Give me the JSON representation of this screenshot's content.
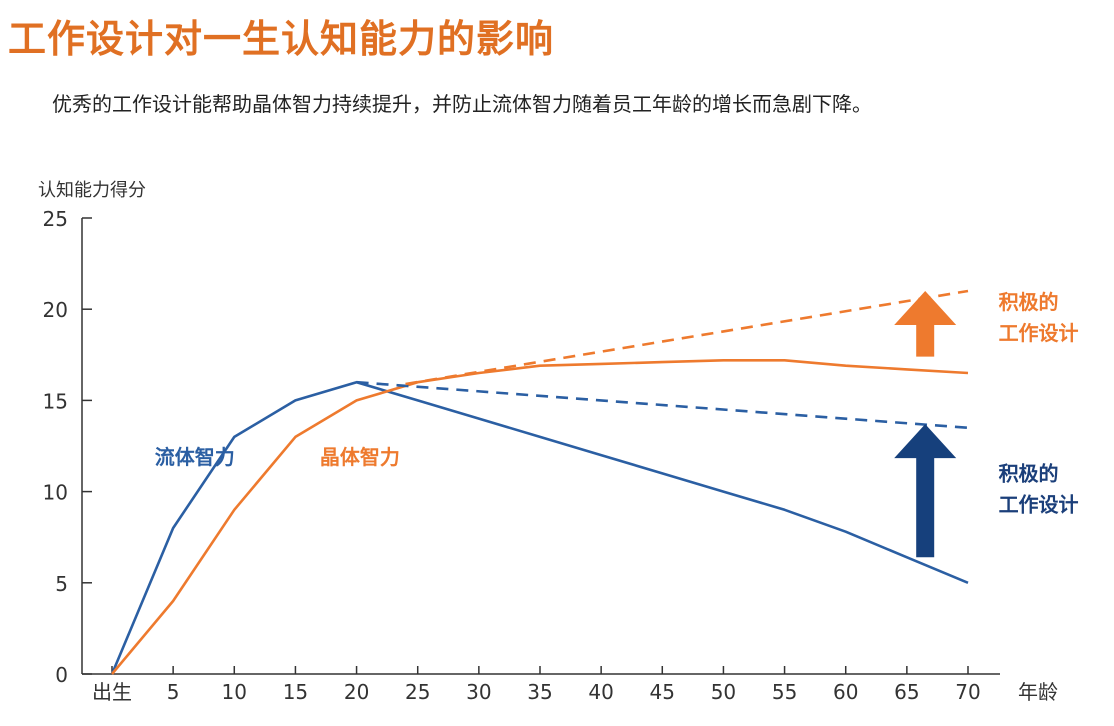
{
  "page": {
    "title": "工作设计对一生认知能力的影响",
    "subtitle": "优秀的工作设计能帮助晶体智力持续提升，并防止流体智力随着员工年龄的增长而急剧下降。"
  },
  "chart_data": {
    "type": "line",
    "ylabel": "认知能力得分",
    "xlabel": "年龄",
    "x_ticks": [
      "出生",
      "5",
      "10",
      "15",
      "20",
      "25",
      "30",
      "35",
      "40",
      "45",
      "50",
      "55",
      "60",
      "65",
      "70"
    ],
    "x_values": [
      0,
      5,
      10,
      15,
      20,
      25,
      30,
      35,
      40,
      45,
      50,
      55,
      60,
      65,
      70
    ],
    "y_ticks": [
      "0",
      "5",
      "10",
      "15",
      "20",
      "25"
    ],
    "ylim": [
      0,
      25
    ],
    "xlim": [
      0,
      70
    ],
    "grid": false,
    "series": [
      {
        "name": "流体智力",
        "color": "#2B5FA3",
        "style": "solid",
        "points": [
          [
            0,
            0
          ],
          [
            5,
            8
          ],
          [
            10,
            13
          ],
          [
            15,
            15
          ],
          [
            20,
            16
          ],
          [
            25,
            15
          ],
          [
            30,
            14
          ],
          [
            35,
            13
          ],
          [
            40,
            12
          ],
          [
            45,
            11
          ],
          [
            50,
            10
          ],
          [
            55,
            9
          ],
          [
            60,
            7.8
          ],
          [
            65,
            6.4
          ],
          [
            70,
            5
          ]
        ]
      },
      {
        "name": "晶体智力",
        "color": "#EE7A2E",
        "style": "solid",
        "points": [
          [
            0,
            0
          ],
          [
            5,
            4
          ],
          [
            10,
            9
          ],
          [
            15,
            13
          ],
          [
            20,
            15
          ],
          [
            25,
            16
          ],
          [
            30,
            16.5
          ],
          [
            35,
            16.9
          ],
          [
            40,
            17
          ],
          [
            45,
            17.1
          ],
          [
            50,
            17.2
          ],
          [
            55,
            17.2
          ],
          [
            60,
            16.9
          ],
          [
            65,
            16.7
          ],
          [
            70,
            16.5
          ]
        ]
      },
      {
        "name": "",
        "color": "#2B5FA3",
        "style": "dashed",
        "points": [
          [
            20,
            16
          ],
          [
            70,
            13.5
          ]
        ]
      },
      {
        "name": "",
        "color": "#EE7A2E",
        "style": "dashed",
        "points": [
          [
            24,
            15.9
          ],
          [
            70,
            21
          ]
        ]
      }
    ],
    "annotations": [
      {
        "text": "流体智力",
        "color": "#2B5FA3",
        "x": 3.5,
        "y": 11.5
      },
      {
        "text": "晶体智力",
        "color": "#EE7A2E",
        "x": 17,
        "y": 11.5
      },
      {
        "text_lines": [
          "积极的",
          "工作设计"
        ],
        "color": "#EE7A2E",
        "x": 72.5,
        "y": 20
      },
      {
        "text_lines": [
          "积极的",
          "工作设计"
        ],
        "color": "#1B3F7A",
        "x": 72.5,
        "y": 10.6
      }
    ],
    "arrows": [
      {
        "color": "#EE7A2E",
        "x": 66.5,
        "y_from": 17.4,
        "y_to": 21
      },
      {
        "color": "#16407C",
        "x": 66.5,
        "y_from": 6.4,
        "y_to": 13.7
      }
    ]
  }
}
